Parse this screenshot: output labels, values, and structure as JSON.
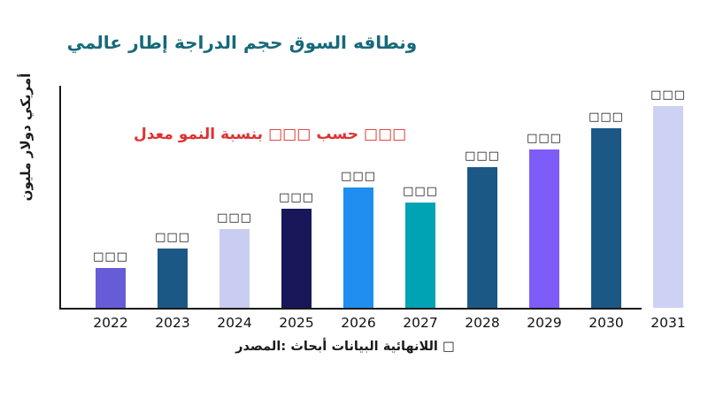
{
  "page": {
    "background": "#ffffff"
  },
  "title": {
    "text": "عالمي إطار الدراجة حجم السوق ونطاقه",
    "color": "#16697a"
  },
  "annotation": {
    "text": "معدل النمو بنسبة □□□ حسب □□□",
    "color": "#e03131"
  },
  "source": {
    "text": "المصدر: أبحاث البيانات اللانهائية □"
  },
  "chart_data": {
    "type": "bar",
    "title": "عالمي إطار الدراجة حجم السوق ونطاقه",
    "categories": [
      "2022",
      "2023",
      "2024",
      "2025",
      "2026",
      "2027",
      "2028",
      "2029",
      "2030",
      "2031"
    ],
    "values": [
      18,
      27,
      36,
      45,
      55,
      48,
      64,
      72,
      82,
      92
    ],
    "value_labels": [
      "□□□",
      "□□□",
      "□□□",
      "□□□",
      "□□□",
      "□□□",
      "□□□",
      "□□□",
      "□□□",
      "□□□"
    ],
    "bar_colors": [
      "#675cd8",
      "#1b5886",
      "#c9cdf2",
      "#18175a",
      "#1f8ef0",
      "#00a3b3",
      "#1b5886",
      "#7d5cf8",
      "#1b5886",
      "#cdd1f4"
    ],
    "xlabel": "",
    "ylabel": "مليون دولار أمريكي",
    "ylim": [
      0,
      100
    ],
    "grid": false,
    "legend": false,
    "annotation": "معدل النمو بنسبة □□□ حسب □□□",
    "axis_color": "#1a1a1a"
  }
}
